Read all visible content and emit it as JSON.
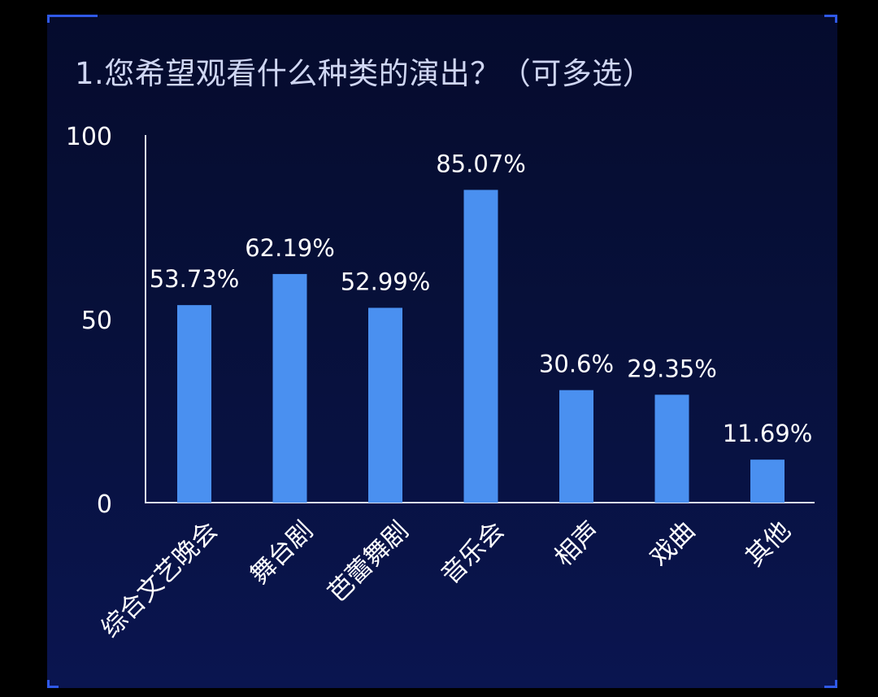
{
  "chart_data": {
    "type": "bar",
    "title": "1.您希望观看什么种类的演出？（可多选）",
    "categories": [
      "综合文艺晚会",
      "舞台剧",
      "芭蕾舞剧",
      "音乐会",
      "相声",
      "戏曲",
      "其他"
    ],
    "values": [
      53.73,
      62.19,
      52.99,
      85.07,
      30.6,
      29.35,
      11.69
    ],
    "value_labels": [
      "53.73%",
      "62.19%",
      "52.99%",
      "85.07%",
      "30.6%",
      "29.35%",
      "11.69%"
    ],
    "ylim": [
      0,
      100
    ],
    "yticks": [
      "0",
      "50",
      "100"
    ],
    "xlabel": "",
    "ylabel": "",
    "grid": false,
    "legend": "none"
  },
  "colors": {
    "bar": "#4a90f0",
    "axis": "#d8dcef",
    "label": "#ffffff",
    "tick": "#ffffff",
    "title": "#cfd6f2",
    "frame_accent": "#2f59e8"
  }
}
